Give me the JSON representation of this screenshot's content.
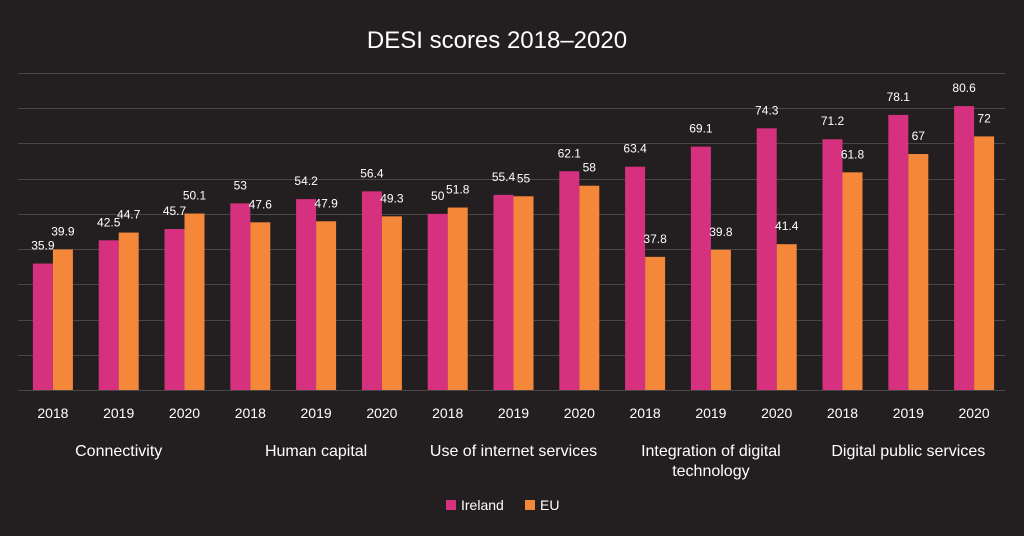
{
  "chart_data": {
    "type": "bar",
    "title": "DESI scores 2018–2020",
    "ylim": [
      0,
      90
    ],
    "grid": true,
    "legend_position": "bottom",
    "groups": [
      {
        "name": "Connectivity",
        "name_lines": [
          "Connectivity"
        ]
      },
      {
        "name": "Human capital",
        "name_lines": [
          "Human capital"
        ]
      },
      {
        "name": "Use of internet services",
        "name_lines": [
          "Use of internet services"
        ]
      },
      {
        "name": "Integration of digital technology",
        "name_lines": [
          "Integration of digital",
          "technology"
        ]
      },
      {
        "name": "Digital public services",
        "name_lines": [
          "Digital public services"
        ]
      }
    ],
    "years": [
      "2018",
      "2019",
      "2020"
    ],
    "series": [
      {
        "name": "Ireland",
        "color": "#d6317f",
        "values": [
          35.9,
          42.5,
          45.7,
          53,
          54.2,
          56.4,
          50,
          55.4,
          62.1,
          63.4,
          69.1,
          74.3,
          71.2,
          78.1,
          80.6
        ]
      },
      {
        "name": "EU",
        "color": "#f5873a",
        "values": [
          39.9,
          44.7,
          50.1,
          47.6,
          47.9,
          49.3,
          51.8,
          55,
          58,
          37.8,
          39.8,
          41.4,
          61.8,
          67,
          72
        ]
      }
    ]
  }
}
